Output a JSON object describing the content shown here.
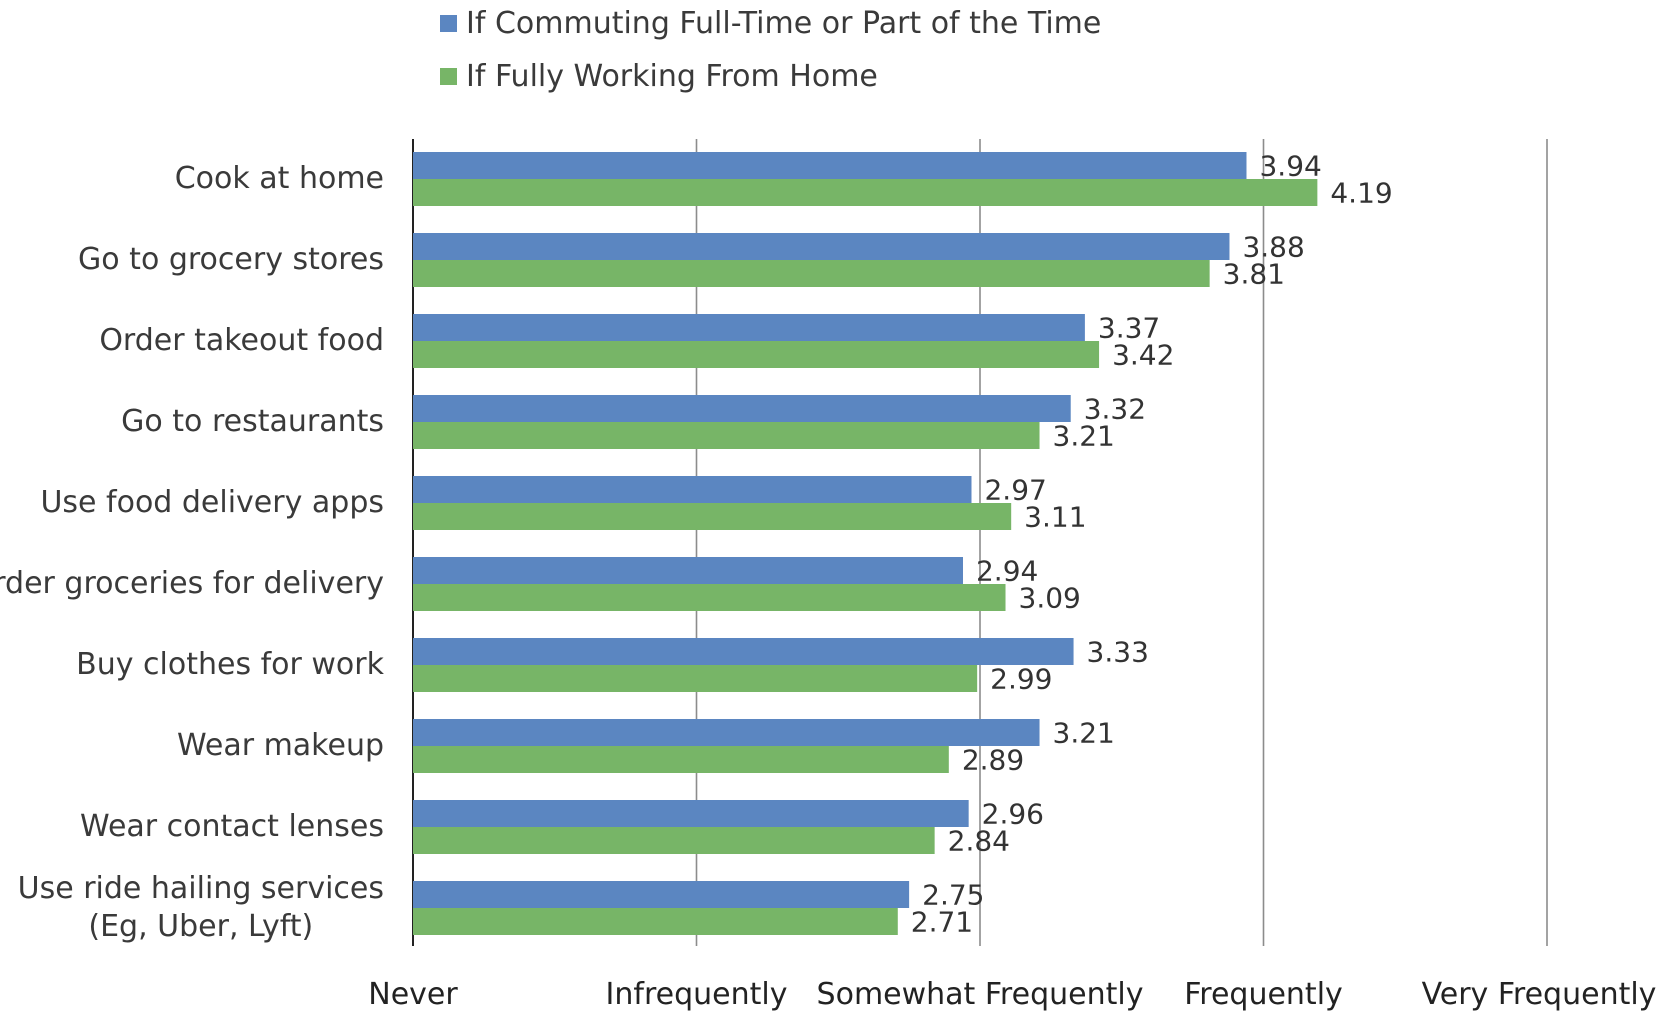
{
  "chart_data": {
    "type": "bar",
    "orientation": "horizontal",
    "title": "",
    "xlabel": "",
    "ylabel": "",
    "xlim": [
      1,
      5
    ],
    "x_tick_labels": [
      "Never",
      "Infrequently",
      "Somewhat Frequently",
      "Frequently",
      "Very Frequently"
    ],
    "grid": true,
    "legend_position": "top",
    "categories": [
      "Cook at home",
      "Go to grocery stores",
      "Order takeout food",
      "Go to restaurants",
      "Use food delivery apps",
      "Order groceries for delivery",
      "Buy clothes for work",
      "Wear makeup",
      "Wear contact lenses",
      "Use ride hailing services (Eg, Uber, Lyft)"
    ],
    "category_lines": [
      [
        "Cook at home"
      ],
      [
        "Go to grocery stores"
      ],
      [
        "Order takeout food"
      ],
      [
        "Go to restaurants"
      ],
      [
        "Use food delivery apps"
      ],
      [
        "Order groceries for delivery"
      ],
      [
        "Buy clothes for work"
      ],
      [
        "Wear makeup"
      ],
      [
        "Wear contact lenses"
      ],
      [
        "Use ride hailing services",
        "(Eg, Uber, Lyft)"
      ]
    ],
    "series": [
      {
        "name": "If Commuting Full-Time or Part of the Time",
        "color": "#5b86c1",
        "values": [
          3.94,
          3.88,
          3.37,
          3.32,
          2.97,
          2.94,
          3.33,
          3.21,
          2.96,
          2.75
        ],
        "labels": [
          "3.94",
          "3.88",
          "3.37",
          "3.32",
          "2.97",
          "2.94",
          "3.33",
          "3.21",
          "2.96",
          "2.75"
        ]
      },
      {
        "name": "If Fully Working From Home",
        "color": "#77b567",
        "values": [
          4.19,
          3.81,
          3.42,
          3.21,
          3.11,
          3.09,
          2.99,
          2.89,
          2.84,
          2.71
        ],
        "labels": [
          "4.19",
          "3.81",
          "3.42",
          "3.21",
          "3.11",
          "3.09",
          "2.99",
          "2.89",
          "2.84",
          "2.71"
        ]
      }
    ]
  }
}
